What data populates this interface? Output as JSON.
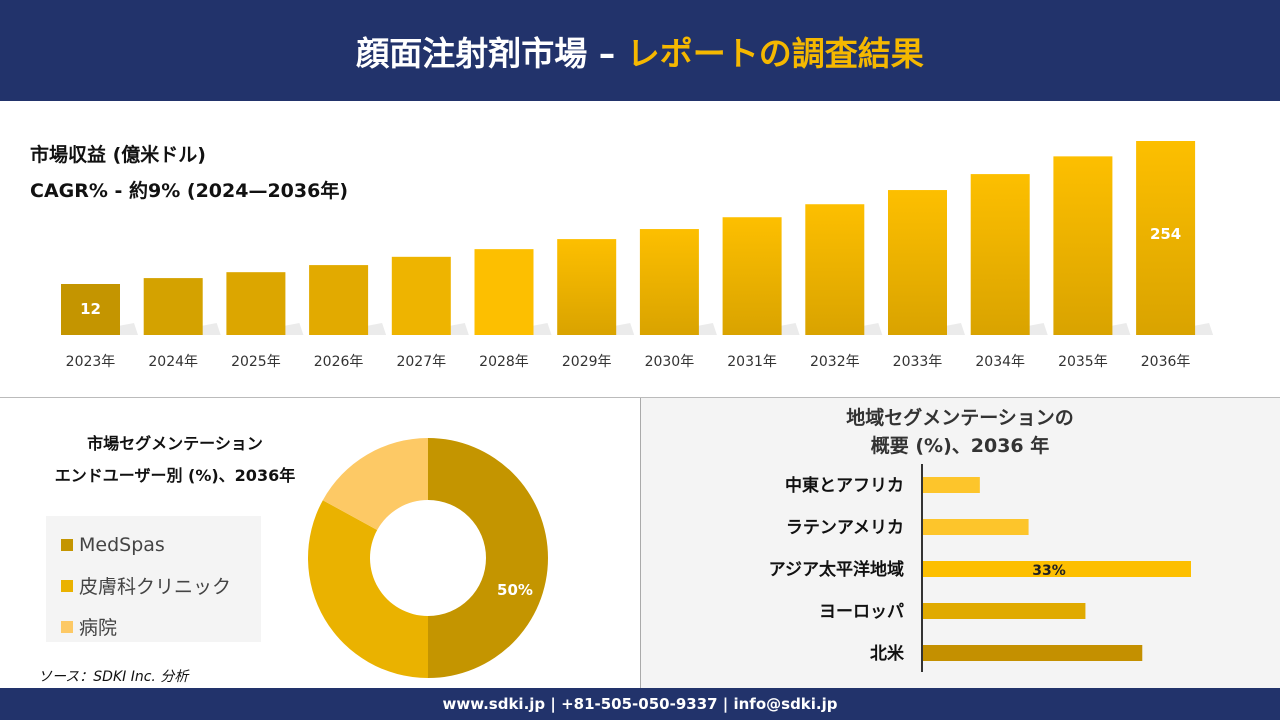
{
  "header": {
    "title_main": "顔面注射剤市場 –",
    "title_accent": "レポートの調査結果"
  },
  "colors": {
    "header_bg": "#22336b",
    "accent": "#f5b800",
    "medspas": "#c49500",
    "dermatology": "#eab200",
    "hospital": "#fdc965"
  },
  "chart_data": [
    {
      "type": "bar",
      "title": "市場収益 (億米ドル)",
      "subtitle": "CAGR% - 約9% (2024—2036年)",
      "categories": [
        "2023年",
        "2024年",
        "2025年",
        "2026年",
        "2027年",
        "2028年",
        "2029年",
        "2030年",
        "2031年",
        "2032年",
        "2033年",
        "2034年",
        "2035年",
        "2036年"
      ],
      "values": [
        12,
        22,
        32,
        44,
        58,
        71,
        88,
        105,
        125,
        147,
        171,
        198,
        228,
        254
      ],
      "data_labels": {
        "0": "12",
        "13": "254"
      }
    },
    {
      "type": "pie",
      "title_line1": "市場セグメンテーション",
      "title_line2": "エンドユーザー別 (%)、2036年",
      "slices": [
        {
          "name": "MedSpas",
          "value": 50,
          "label": "50%"
        },
        {
          "name": "皮膚科クリニック",
          "value": 33
        },
        {
          "name": "病院",
          "value": 17
        }
      ]
    },
    {
      "type": "bar",
      "orientation": "horizontal",
      "title_line1": "地域セグメンテーションの",
      "title_line2": "概要 (%)、2036 年",
      "categories": [
        "中東とアフリカ",
        "ラテンアメリカ",
        "アジア太平洋地域",
        "ヨーロッパ",
        "北米"
      ],
      "values": [
        7,
        13,
        33,
        20,
        27
      ],
      "data_labels": {
        "2": "33%"
      },
      "colors": [
        "#fdc52b",
        "#fdc52b",
        "#fdbf00",
        "#e0aa00",
        "#c49000"
      ]
    }
  ],
  "source": "ソース：SDKI Inc. 分析",
  "footer": "www.sdki.jp | +81-505-050-9337 | info@sdki.jp"
}
